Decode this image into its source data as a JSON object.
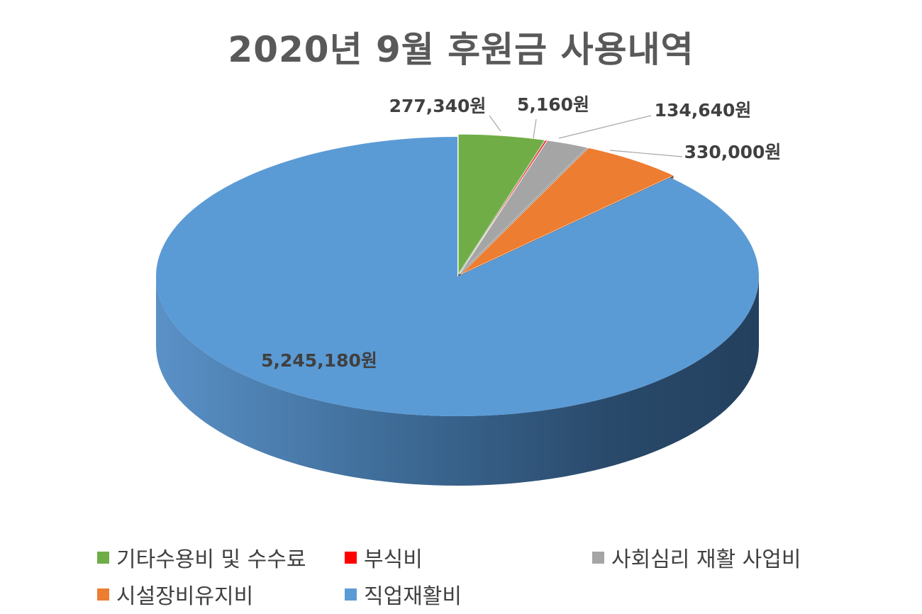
{
  "chart_data": {
    "type": "pie",
    "title": "2020년 9월 후원금 사용내역",
    "unit": "원",
    "legend_position": "bottom",
    "slices": [
      {
        "name": "기타수용비 및 수수료",
        "value": 277340,
        "label": "277,340원",
        "color": "#70ad47"
      },
      {
        "name": "부식비",
        "value": 5160,
        "label": "5,160원",
        "color": "#ff0000"
      },
      {
        "name": "사회심리 재활 사업비",
        "value": 134640,
        "label": "134,640원",
        "color": "#a5a5a5"
      },
      {
        "name": "시설장비유지비",
        "value": 330000,
        "label": "330,000원",
        "color": "#ed7d31"
      },
      {
        "name": "직업재활비",
        "value": 5245180,
        "label": "5,245,180원",
        "color": "#5b9bd5"
      }
    ]
  }
}
